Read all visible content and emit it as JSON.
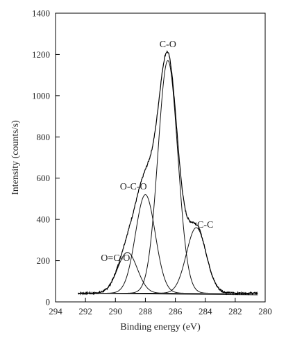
{
  "chart_data": {
    "type": "line",
    "title": "",
    "xlabel": "Binding energy (eV)",
    "ylabel": "Intensity (counts/s)",
    "xlim": [
      294,
      280
    ],
    "ylim": [
      0,
      1400
    ],
    "x_reversed": true,
    "xticks": [
      "294",
      "292",
      "290",
      "288",
      "286",
      "284",
      "282",
      "280"
    ],
    "yticks": [
      "0",
      "200",
      "400",
      "600",
      "800",
      "1000",
      "1200",
      "1400"
    ],
    "grid": false,
    "legend": "none",
    "baseline": 42,
    "peaks": [
      {
        "label": "C-C",
        "center": 284.6,
        "amplitude": 318,
        "fwhm": 1.55
      },
      {
        "label": "C-O",
        "center": 286.5,
        "amplitude": 1128,
        "fwhm": 1.55
      },
      {
        "label": "O-C-O",
        "center": 288.0,
        "amplitude": 478,
        "fwhm": 1.55
      },
      {
        "label": "O=C-O",
        "center": 289.2,
        "amplitude": 198,
        "fwhm": 1.55
      }
    ],
    "annotations": [
      {
        "text": "C-O",
        "x": 286.5,
        "y": 1235
      },
      {
        "text": "O-C-O",
        "x": 288.8,
        "y": 545
      },
      {
        "text": "C-C",
        "x": 284.0,
        "y": 360
      },
      {
        "text": "O=C-O",
        "x": 290.0,
        "y": 198
      }
    ]
  }
}
